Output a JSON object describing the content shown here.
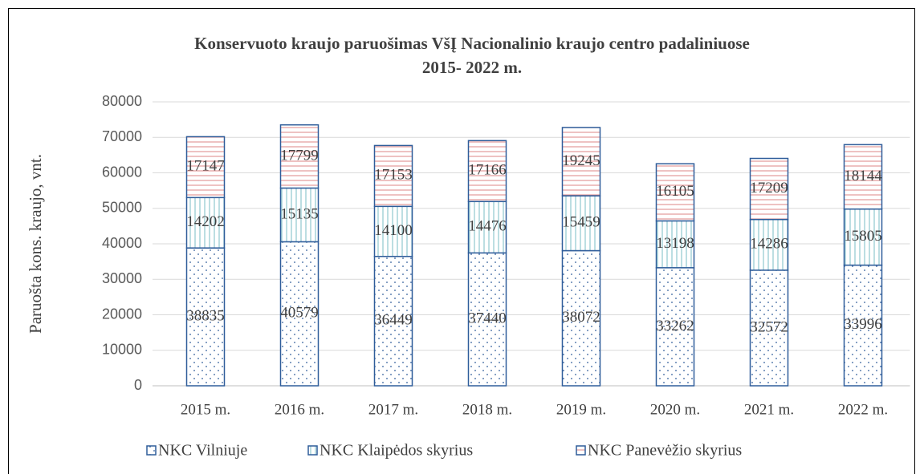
{
  "chart_data": {
    "type": "stacked_bar",
    "title": [
      "Konservuoto kraujo paruošimas VšĮ Nacionalinio kraujo  centro padaliniuose",
      "2015- 2022 m."
    ],
    "y_label": "Paruošta kons. kraujo, vnt.",
    "categories": [
      "2015 m.",
      "2016 m.",
      "2017 m.",
      "2018 m.",
      "2019 m.",
      "2020 m.",
      "2021 m.",
      "2022 m."
    ],
    "series": [
      {
        "name": "NKC Vilniuje",
        "color": "#2f5d9a",
        "values": [
          38835,
          40579,
          36449,
          37440,
          38072,
          33262,
          32572,
          33996
        ]
      },
      {
        "name": "NKC Klaipėdos skyrius",
        "color": "#8fc8cf",
        "values": [
          14202,
          15135,
          14100,
          14476,
          15459,
          13198,
          14286,
          15805
        ]
      },
      {
        "name": "NKC Panevėžio skyrius",
        "color": "#e39a9a",
        "values": [
          17147,
          17799,
          17153,
          17166,
          19245,
          16105,
          17209,
          18144
        ]
      }
    ],
    "ylim": [
      0,
      80000
    ],
    "yticks": [
      0,
      10000,
      20000,
      30000,
      40000,
      50000,
      60000,
      70000,
      80000
    ],
    "grid": true,
    "legend": "bottom"
  }
}
